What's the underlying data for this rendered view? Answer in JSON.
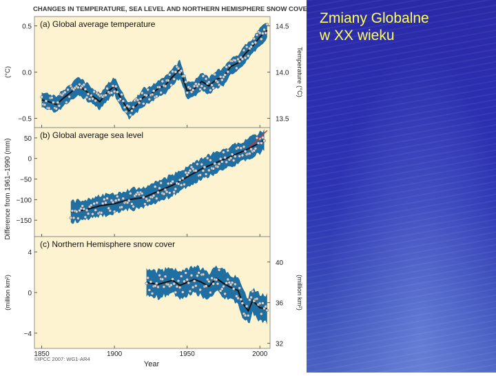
{
  "slide": {
    "title_line1": "Zmiany Globalne",
    "title_line2": "w XX wieku"
  },
  "figure": {
    "header": "CHANGES IN TEMPERATURE, SEA LEVEL AND NORTHERN HEMISPHERE SNOW COVER",
    "x_label": "Year",
    "copyright": "©IPCC 2007: WG1-AR4",
    "x_ticks": [
      "1850",
      "1900",
      "1950",
      "2000"
    ],
    "middle_y_label": "Difference from 1961–1990 (mm)"
  },
  "colors": {
    "panel_bg": "#fdf3d0",
    "band": "#1f6fa3",
    "line": "#111111",
    "trend_red": "#d9302a"
  },
  "chart_data": [
    {
      "type": "line",
      "title": "(a) Global average temperature",
      "xlabel": "Year",
      "ylabel_left": "(°C)",
      "ylabel_right": "Temperature (°C)",
      "xlim": [
        1845,
        2007
      ],
      "ylim": [
        -0.6,
        0.6
      ],
      "left_ticks": [
        "0.5",
        "0.0",
        "−0.5"
      ],
      "right_ticks": [
        "14.5",
        "14.0",
        "13.5"
      ],
      "x": [
        1850,
        1855,
        1860,
        1865,
        1870,
        1875,
        1880,
        1885,
        1890,
        1895,
        1900,
        1905,
        1910,
        1915,
        1920,
        1925,
        1930,
        1935,
        1940,
        1945,
        1950,
        1955,
        1960,
        1965,
        1970,
        1975,
        1980,
        1985,
        1990,
        1995,
        2000,
        2005
      ],
      "values": [
        -0.3,
        -0.32,
        -0.35,
        -0.28,
        -0.22,
        -0.15,
        -0.2,
        -0.26,
        -0.32,
        -0.22,
        -0.15,
        -0.3,
        -0.42,
        -0.36,
        -0.27,
        -0.24,
        -0.18,
        -0.14,
        -0.05,
        0.03,
        -0.2,
        -0.18,
        -0.1,
        -0.15,
        -0.08,
        -0.05,
        0.06,
        0.1,
        0.2,
        0.28,
        0.38,
        0.45
      ],
      "band_halfwidth": 0.09
    },
    {
      "type": "line",
      "title": "(b) Global average sea level",
      "xlabel": "Year",
      "ylabel": "Difference from 1961–1990 (mm)",
      "xlim": [
        1845,
        2007
      ],
      "ylim": [
        -190,
        75
      ],
      "left_ticks": [
        "50",
        "0",
        "−50",
        "−100",
        "−150"
      ],
      "x": [
        1870,
        1880,
        1890,
        1900,
        1910,
        1920,
        1930,
        1940,
        1950,
        1960,
        1970,
        1980,
        1990,
        2000,
        2003
      ],
      "values": [
        -130,
        -125,
        -115,
        -110,
        -100,
        -95,
        -80,
        -65,
        -45,
        -25,
        -10,
        5,
        20,
        38,
        45
      ],
      "band_halfwidth": 25,
      "satellite_trend": {
        "x": [
          1993,
          2005
        ],
        "values": [
          28,
          68
        ]
      }
    },
    {
      "type": "line",
      "title": "(c) Northern Hemisphere snow cover",
      "xlabel": "Year",
      "ylabel_left": "(million km²)",
      "ylabel_right": "(million km²)",
      "xlim": [
        1845,
        2007
      ],
      "ylim": [
        -5.5,
        5.5
      ],
      "left_ticks": [
        "4",
        "0",
        "−4"
      ],
      "right_ticks": [
        "40",
        "36",
        "32"
      ],
      "x": [
        1922,
        1930,
        1940,
        1945,
        1950,
        1955,
        1960,
        1965,
        1970,
        1975,
        1980,
        1985,
        1988,
        1992,
        1995,
        2000,
        2005
      ],
      "values": [
        1.0,
        0.8,
        1.2,
        0.7,
        1.0,
        1.3,
        1.0,
        0.6,
        1.4,
        0.9,
        0.5,
        0.2,
        -1.0,
        -1.8,
        -0.8,
        -1.5,
        -1.6
      ],
      "band_halfwidth": 1.3
    }
  ]
}
